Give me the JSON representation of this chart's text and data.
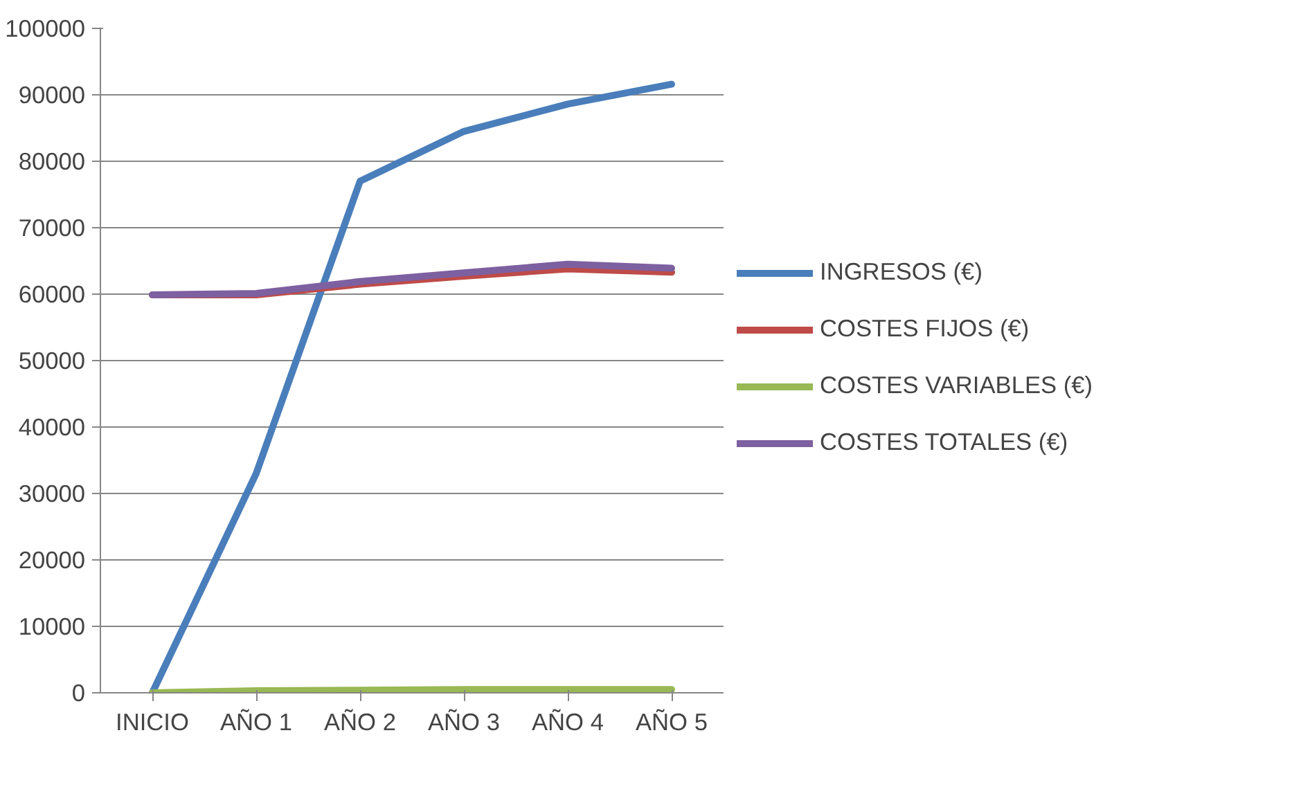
{
  "chart_data": {
    "type": "line",
    "categories": [
      "INICIO",
      "AÑO 1",
      "AÑO 2",
      "AÑO 3",
      "AÑO 4",
      "AÑO 5"
    ],
    "series": [
      {
        "name": "INGRESOS (€)",
        "color": "#4a7ebb",
        "values": [
          0,
          33000,
          77000,
          84500,
          88600,
          91600
        ]
      },
      {
        "name": "COSTES FIJOS (€)",
        "color": "#be4b48",
        "values": [
          59900,
          59900,
          61500,
          62700,
          63800,
          63300
        ]
      },
      {
        "name": "COSTES VARIABLES (€)",
        "color": "#98b954",
        "values": [
          0,
          300,
          400,
          500,
          500,
          500
        ]
      },
      {
        "name": "COSTES TOTALES (€)",
        "color": "#7d60a0",
        "values": [
          59900,
          60100,
          61900,
          63200,
          64500,
          63900
        ]
      }
    ],
    "ylim": [
      0,
      100000
    ],
    "yticks": [
      0,
      10000,
      20000,
      30000,
      40000,
      50000,
      60000,
      70000,
      80000,
      90000,
      100000
    ],
    "grid": "y",
    "legend": "right",
    "marker": "none",
    "line_style": "solid"
  }
}
